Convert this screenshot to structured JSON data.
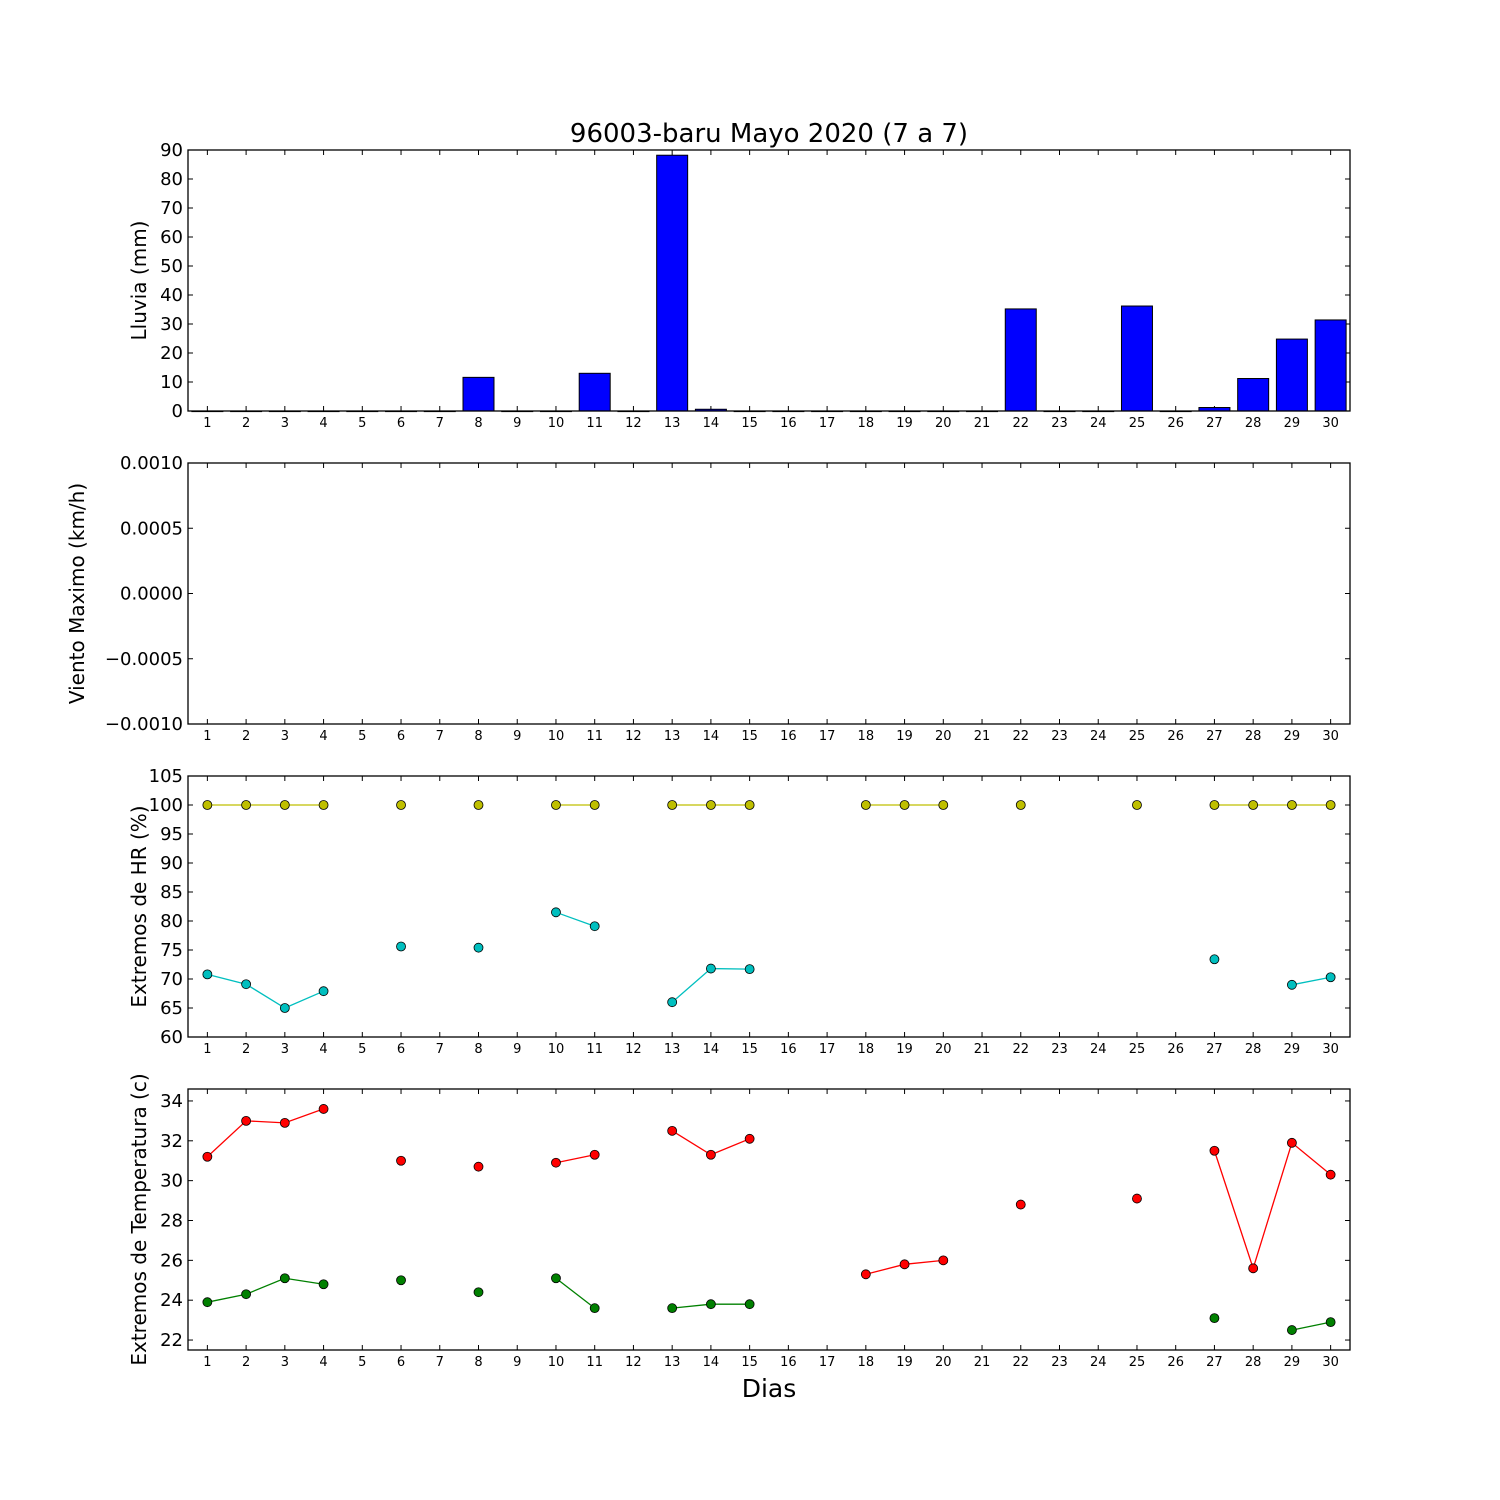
{
  "title": "96003-baru Mayo 2020  (7 a 7)",
  "xlabel": "Dias",
  "chart_data": [
    {
      "type": "bar",
      "ylabel": "Lluvia (mm)",
      "ylim": [
        0,
        90
      ],
      "yticks": [
        "0",
        "10",
        "20",
        "30",
        "40",
        "50",
        "60",
        "70",
        "80",
        "90"
      ],
      "categories": [
        "1",
        "2",
        "3",
        "4",
        "5",
        "6",
        "7",
        "8",
        "9",
        "10",
        "11",
        "12",
        "13",
        "14",
        "15",
        "16",
        "17",
        "18",
        "19",
        "20",
        "21",
        "22",
        "23",
        "24",
        "25",
        "26",
        "27",
        "28",
        "29",
        "30"
      ],
      "values": [
        0,
        0,
        0,
        0,
        0,
        0,
        0,
        11.6,
        0,
        0,
        13.0,
        0,
        88.2,
        0.6,
        0,
        0,
        0,
        0,
        0,
        0,
        0,
        35.2,
        0,
        0,
        36.2,
        0,
        1.2,
        11.2,
        24.8,
        31.4
      ],
      "colors": {
        "bar": "#0000ff"
      }
    },
    {
      "type": "line",
      "ylabel": "Viento Maximo (km/h)",
      "ylim": [
        -0.001,
        0.001
      ],
      "yticks": [
        "−0.0010",
        "−0.0005",
        "0.0000",
        "0.0005",
        "0.0010"
      ],
      "categories": [
        "1",
        "2",
        "3",
        "4",
        "5",
        "6",
        "7",
        "8",
        "9",
        "10",
        "11",
        "12",
        "13",
        "14",
        "15",
        "16",
        "17",
        "18",
        "19",
        "20",
        "21",
        "22",
        "23",
        "24",
        "25",
        "26",
        "27",
        "28",
        "29",
        "30"
      ],
      "series": []
    },
    {
      "type": "line",
      "ylabel": "Extremos de HR (%)",
      "ylim": [
        60,
        105
      ],
      "yticks": [
        "60",
        "65",
        "70",
        "75",
        "80",
        "85",
        "90",
        "95",
        "100",
        "105"
      ],
      "categories": [
        "1",
        "2",
        "3",
        "4",
        "5",
        "6",
        "7",
        "8",
        "9",
        "10",
        "11",
        "12",
        "13",
        "14",
        "15",
        "16",
        "17",
        "18",
        "19",
        "20",
        "21",
        "22",
        "23",
        "24",
        "25",
        "26",
        "27",
        "28",
        "29",
        "30"
      ],
      "series": [
        {
          "color": "#bfbf00",
          "values": [
            100,
            100,
            100,
            100,
            null,
            100,
            null,
            100,
            null,
            100,
            100,
            null,
            100,
            100,
            100,
            null,
            null,
            100,
            100,
            100,
            null,
            100,
            null,
            null,
            100,
            null,
            100,
            100,
            100,
            100
          ]
        },
        {
          "color": "#00bfbf",
          "values": [
            70.8,
            69.1,
            65.0,
            67.9,
            null,
            75.6,
            null,
            75.4,
            null,
            81.5,
            79.1,
            null,
            66.0,
            71.8,
            71.7,
            null,
            null,
            null,
            null,
            null,
            null,
            null,
            null,
            null,
            null,
            null,
            73.4,
            null,
            69.0,
            70.3
          ]
        }
      ]
    },
    {
      "type": "line",
      "ylabel": "Extremos de Temperatura (c)",
      "ylim": [
        21.5,
        34.6
      ],
      "yticks": [
        "22",
        "24",
        "26",
        "28",
        "30",
        "32",
        "34"
      ],
      "categories": [
        "1",
        "2",
        "3",
        "4",
        "5",
        "6",
        "7",
        "8",
        "9",
        "10",
        "11",
        "12",
        "13",
        "14",
        "15",
        "16",
        "17",
        "18",
        "19",
        "20",
        "21",
        "22",
        "23",
        "24",
        "25",
        "26",
        "27",
        "28",
        "29",
        "30"
      ],
      "series": [
        {
          "color": "#ff0000",
          "values": [
            31.2,
            33.0,
            32.9,
            33.6,
            null,
            31.0,
            null,
            30.7,
            null,
            30.9,
            31.3,
            null,
            32.5,
            31.3,
            32.1,
            null,
            null,
            25.3,
            25.8,
            26.0,
            null,
            28.8,
            null,
            null,
            29.1,
            null,
            31.5,
            25.6,
            31.9,
            30.3
          ]
        },
        {
          "color": "#008000",
          "values": [
            23.9,
            24.3,
            25.1,
            24.8,
            null,
            25.0,
            null,
            24.4,
            null,
            25.1,
            23.6,
            null,
            23.6,
            23.8,
            23.8,
            null,
            null,
            null,
            null,
            null,
            null,
            null,
            null,
            null,
            null,
            null,
            23.1,
            null,
            22.5,
            22.9
          ]
        }
      ]
    }
  ]
}
